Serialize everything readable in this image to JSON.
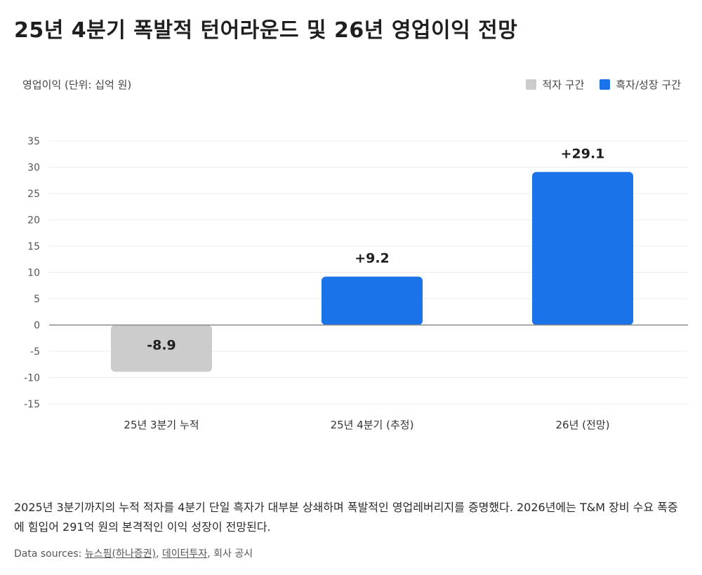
{
  "title": "25년 4분기 폭발적 턴어라운드 및 26년 영업이익 전망",
  "chart_data": {
    "type": "bar",
    "ylabel": "영업이익 (단위: 십억 원)",
    "categories": [
      "25년 3분기 누적",
      "25년 4분기 (추정)",
      "26년 (전망)"
    ],
    "values": [
      -8.9,
      9.2,
      29.1
    ],
    "value_labels": [
      "-8.9",
      "+9.2",
      "+29.1"
    ],
    "bar_groups": [
      "loss",
      "profit",
      "profit"
    ],
    "ylim": [
      -15,
      35
    ],
    "yticks": [
      35,
      30,
      25,
      20,
      15,
      10,
      5,
      0,
      -5,
      -10,
      -15
    ],
    "grid": true,
    "legend_position": "top-right",
    "legend": [
      {
        "key": "loss",
        "label": "적자 구간",
        "color": "#cccccc"
      },
      {
        "key": "profit",
        "label": "흑자/성장 구간",
        "color": "#1a73e8"
      }
    ]
  },
  "caption": "2025년 3분기까지의 누적 적자를 4분기 단일 흑자가 대부분 상쇄하며 폭발적인 영업레버리지를 증명했다. 2026년에는 T&M 장비 수요 폭증에 힘입어 291억 원의 본격적인 이익 성장이 전망된다.",
  "sources": {
    "prefix": "Data sources: ",
    "items": [
      "뉴스핌(하나증권)",
      "데이터투자"
    ],
    "separator": ", ",
    "suffix": "회사 공시"
  }
}
